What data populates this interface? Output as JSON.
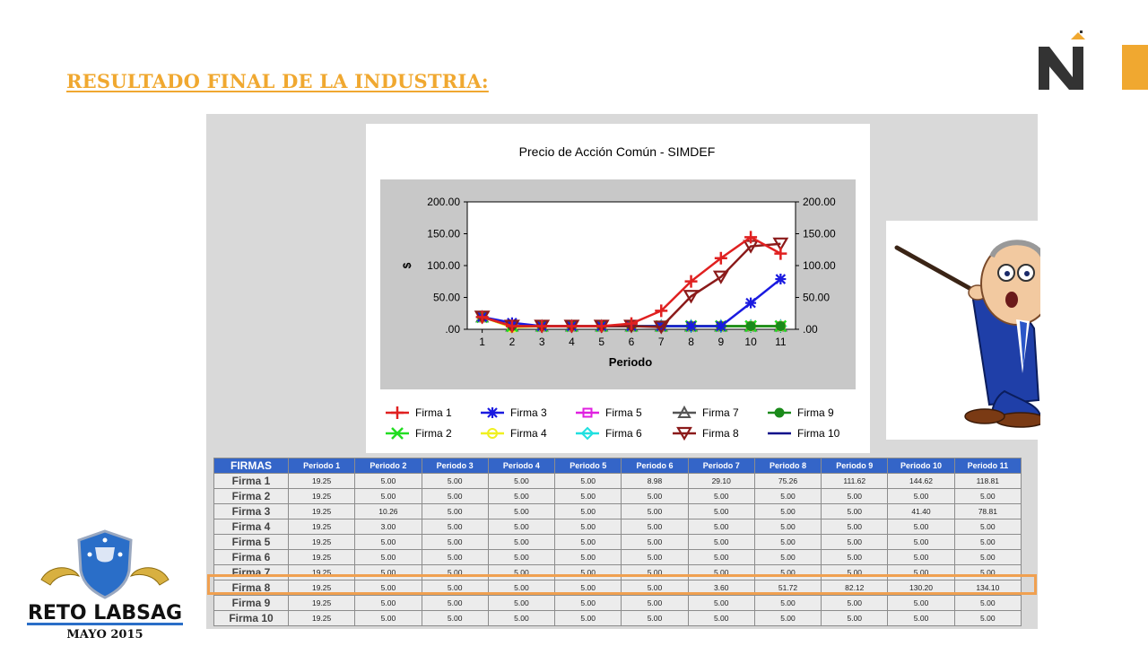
{
  "slide": {
    "title": "RESULTADO FINAL DE LA INDUSTRIA:",
    "badge_title": "RETO LABSAG",
    "badge_subtitle": "MAYO 2015"
  },
  "colors": {
    "accent": "#f0a830",
    "table_header": "#3465c8",
    "highlight": "#f0a050"
  },
  "chart_data": {
    "type": "line",
    "title": "Precio de Acción Común - SIMDEF",
    "xlabel": "Periodo",
    "ylabel": "$",
    "x": [
      1,
      2,
      3,
      4,
      5,
      6,
      7,
      8,
      9,
      10,
      11
    ],
    "ylim": [
      0,
      200
    ],
    "yticks": [
      ".00",
      "50.00",
      "100.00",
      "150.00",
      "200.00"
    ],
    "series": [
      {
        "name": "Firma  1",
        "color": "#e02020",
        "marker": "plus",
        "values": [
          19.25,
          5.0,
          5.0,
          5.0,
          5.0,
          8.98,
          29.1,
          75.26,
          111.62,
          144.62,
          118.81
        ]
      },
      {
        "name": "Firma  2",
        "color": "#22dd22",
        "marker": "x",
        "values": [
          19.25,
          5.0,
          5.0,
          5.0,
          5.0,
          5.0,
          5.0,
          5.0,
          5.0,
          5.0,
          5.0
        ]
      },
      {
        "name": "Firma  3",
        "color": "#1a1ae0",
        "marker": "asterisk",
        "values": [
          19.25,
          10.26,
          5.0,
          5.0,
          5.0,
          5.0,
          5.0,
          5.0,
          5.0,
          41.4,
          78.81
        ]
      },
      {
        "name": "Firma  4",
        "color": "#f0f020",
        "marker": "circle-open",
        "values": [
          19.25,
          3.0,
          5.0,
          5.0,
          5.0,
          5.0,
          5.0,
          5.0,
          5.0,
          5.0,
          5.0
        ]
      },
      {
        "name": "Firma  5",
        "color": "#e020e0",
        "marker": "square",
        "values": [
          19.25,
          5.0,
          5.0,
          5.0,
          5.0,
          5.0,
          5.0,
          5.0,
          5.0,
          5.0,
          5.0
        ]
      },
      {
        "name": "Firma  6",
        "color": "#20e0e0",
        "marker": "diamond",
        "values": [
          19.25,
          5.0,
          5.0,
          5.0,
          5.0,
          5.0,
          5.0,
          5.0,
          5.0,
          5.0,
          5.0
        ]
      },
      {
        "name": "Firma  7",
        "color": "#555555",
        "marker": "triangle-up",
        "values": [
          19.25,
          5.0,
          5.0,
          5.0,
          5.0,
          5.0,
          5.0,
          5.0,
          5.0,
          5.0,
          5.0
        ]
      },
      {
        "name": "Firma  8",
        "color": "#8b1a1a",
        "marker": "triangle-down",
        "values": [
          19.25,
          5.0,
          5.0,
          5.0,
          5.0,
          5.0,
          3.6,
          51.72,
          82.12,
          130.2,
          134.1
        ]
      },
      {
        "name": "Firma  9",
        "color": "#1a8a1a",
        "marker": "circle-filled",
        "values": [
          19.25,
          5.0,
          5.0,
          5.0,
          5.0,
          5.0,
          5.0,
          5.0,
          5.0,
          5.0,
          5.0
        ]
      },
      {
        "name": "Firma  10",
        "color": "#0a0a8a",
        "marker": "none",
        "values": [
          19.25,
          5.0,
          5.0,
          5.0,
          5.0,
          5.0,
          5.0,
          5.0,
          5.0,
          5.0,
          5.0
        ]
      }
    ]
  },
  "table": {
    "corner": "FIRMAS",
    "columns": [
      "Periodo 1",
      "Periodo 2",
      "Periodo 3",
      "Periodo 4",
      "Periodo 5",
      "Periodo 6",
      "Periodo 7",
      "Periodo 8",
      "Periodo 9",
      "Periodo 10",
      "Periodo 11"
    ],
    "rows": [
      {
        "name": "Firma 1",
        "values": [
          "19.25",
          "5.00",
          "5.00",
          "5.00",
          "5.00",
          "8.98",
          "29.10",
          "75.26",
          "111.62",
          "144.62",
          "118.81"
        ]
      },
      {
        "name": "Firma 2",
        "values": [
          "19.25",
          "5.00",
          "5.00",
          "5.00",
          "5.00",
          "5.00",
          "5.00",
          "5.00",
          "5.00",
          "5.00",
          "5.00"
        ]
      },
      {
        "name": "Firma 3",
        "values": [
          "19.25",
          "10.26",
          "5.00",
          "5.00",
          "5.00",
          "5.00",
          "5.00",
          "5.00",
          "5.00",
          "41.40",
          "78.81"
        ]
      },
      {
        "name": "Firma 4",
        "values": [
          "19.25",
          "3.00",
          "5.00",
          "5.00",
          "5.00",
          "5.00",
          "5.00",
          "5.00",
          "5.00",
          "5.00",
          "5.00"
        ]
      },
      {
        "name": "Firma 5",
        "values": [
          "19.25",
          "5.00",
          "5.00",
          "5.00",
          "5.00",
          "5.00",
          "5.00",
          "5.00",
          "5.00",
          "5.00",
          "5.00"
        ]
      },
      {
        "name": "Firma 6",
        "values": [
          "19.25",
          "5.00",
          "5.00",
          "5.00",
          "5.00",
          "5.00",
          "5.00",
          "5.00",
          "5.00",
          "5.00",
          "5.00"
        ]
      },
      {
        "name": "Firma 7",
        "values": [
          "19.25",
          "5.00",
          "5.00",
          "5.00",
          "5.00",
          "5.00",
          "5.00",
          "5.00",
          "5.00",
          "5.00",
          "5.00"
        ]
      },
      {
        "name": "Firma 8",
        "values": [
          "19.25",
          "5.00",
          "5.00",
          "5.00",
          "5.00",
          "5.00",
          "3.60",
          "51.72",
          "82.12",
          "130.20",
          "134.10"
        ]
      },
      {
        "name": "Firma 9",
        "values": [
          "19.25",
          "5.00",
          "5.00",
          "5.00",
          "5.00",
          "5.00",
          "5.00",
          "5.00",
          "5.00",
          "5.00",
          "5.00"
        ]
      },
      {
        "name": "Firma 10",
        "values": [
          "19.25",
          "5.00",
          "5.00",
          "5.00",
          "5.00",
          "5.00",
          "5.00",
          "5.00",
          "5.00",
          "5.00",
          "5.00"
        ]
      }
    ]
  }
}
